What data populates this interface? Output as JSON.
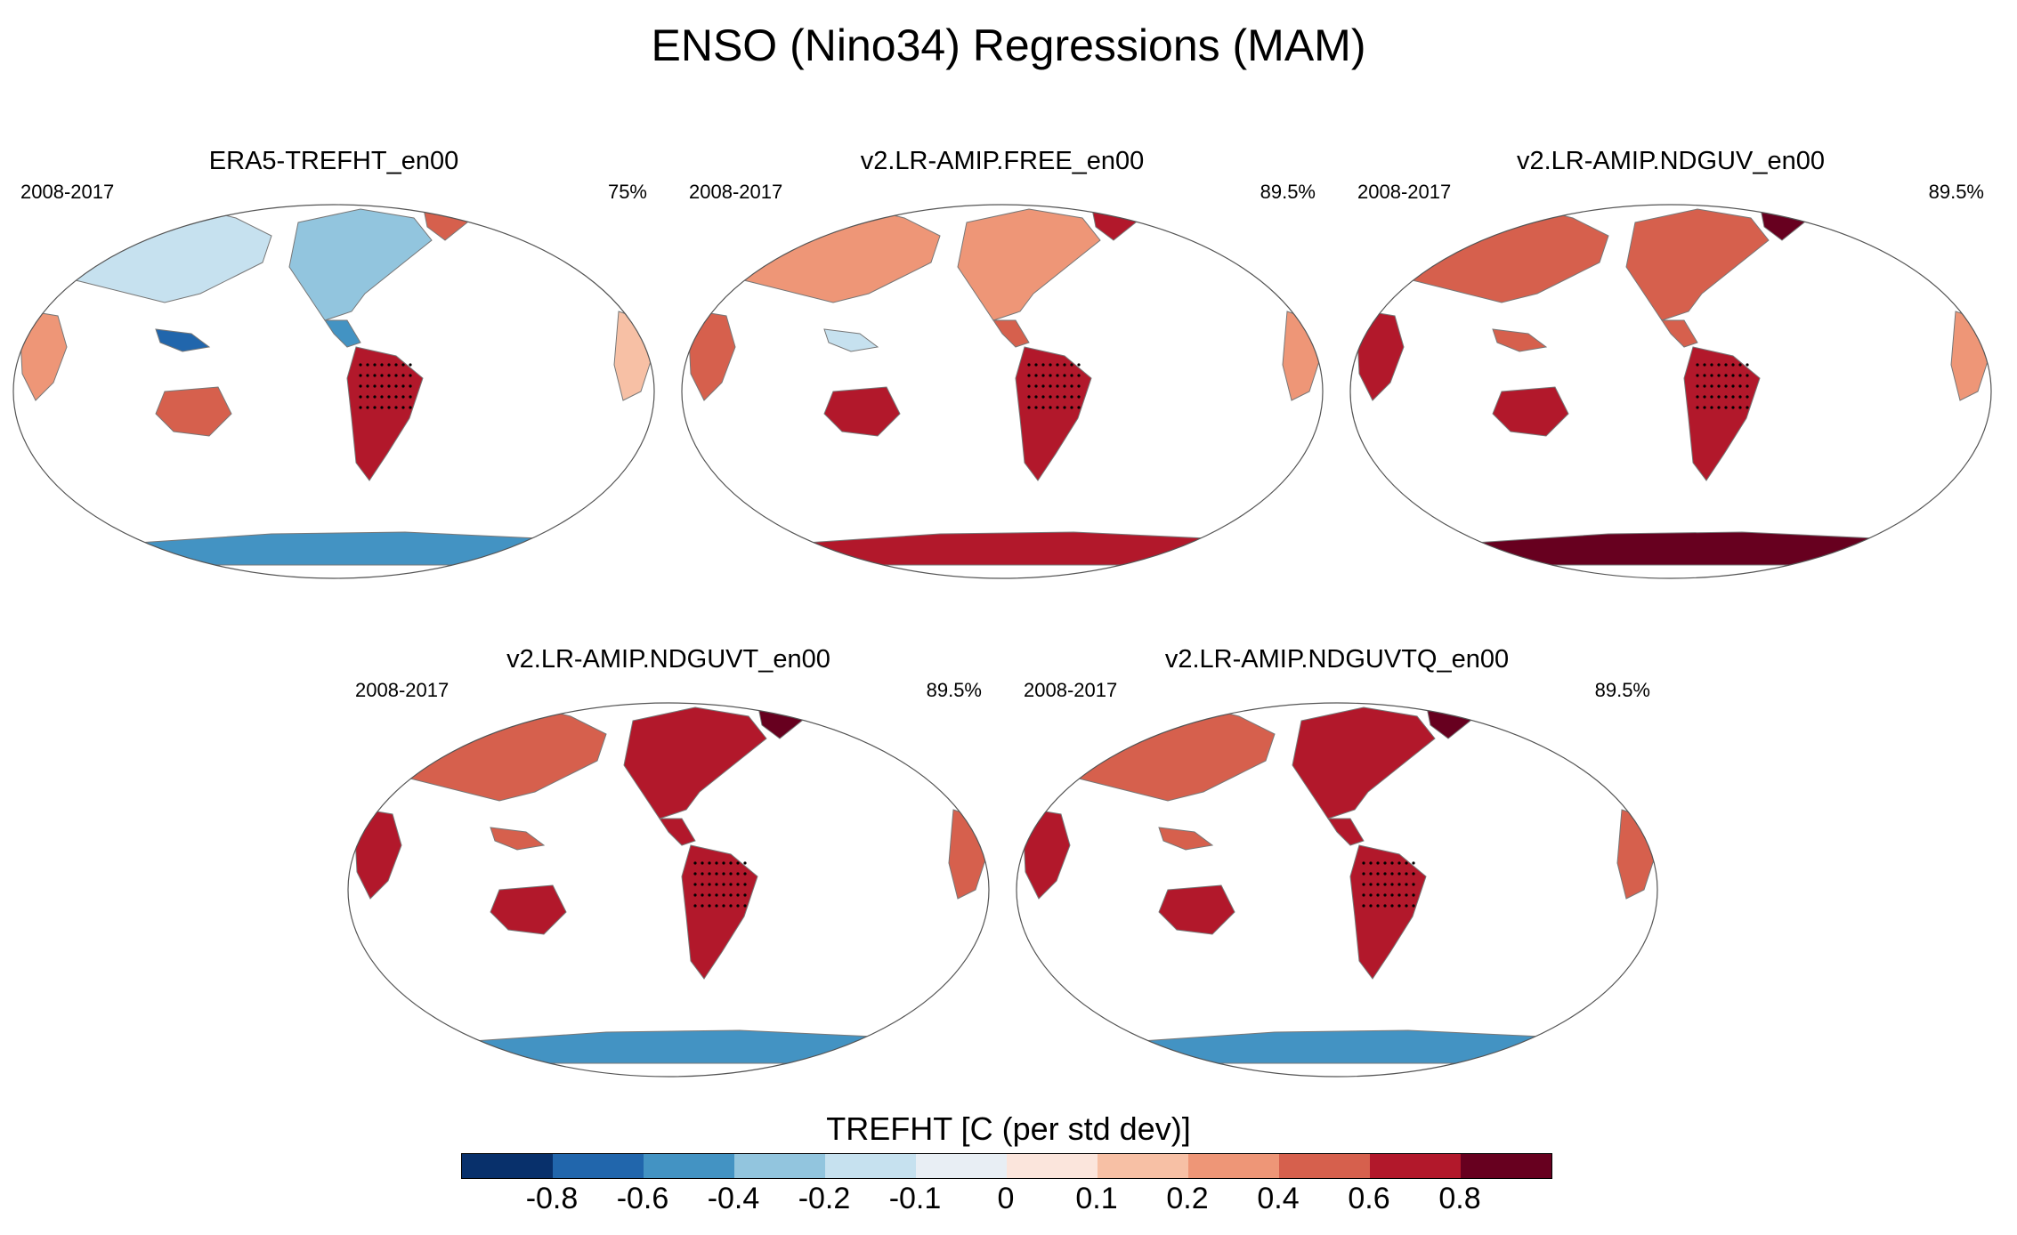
{
  "title": "ENSO (Nino34) Regressions (MAM)",
  "panels": [
    {
      "name": "ERA5-TREFHT_en00",
      "period": "2008-2017",
      "pct": "75%"
    },
    {
      "name": "v2.LR-AMIP.FREE_en00",
      "period": "2008-2017",
      "pct": "89.5%"
    },
    {
      "name": "v2.LR-AMIP.NDGUV_en00",
      "period": "2008-2017",
      "pct": "89.5%"
    },
    {
      "name": "v2.LR-AMIP.NDGUVT_en00",
      "period": "2008-2017",
      "pct": "89.5%"
    },
    {
      "name": "v2.LR-AMIP.NDGUVTQ_en00",
      "period": "2008-2017",
      "pct": "89.5%"
    }
  ],
  "colorbar": {
    "title": "TREFHT [C (per std dev)]",
    "labels": [
      "-0.8",
      "-0.6",
      "-0.4",
      "-0.2",
      "-0.1",
      "0",
      "0.1",
      "0.2",
      "0.4",
      "0.6",
      "0.8"
    ],
    "colors": [
      "#08306b",
      "#2166ac",
      "#4393c3",
      "#92c5de",
      "#c6e1ef",
      "#e8eef4",
      "#fbe5dc",
      "#f7c0a5",
      "#ee9677",
      "#d6604d",
      "#b2182b",
      "#67001f"
    ]
  }
}
